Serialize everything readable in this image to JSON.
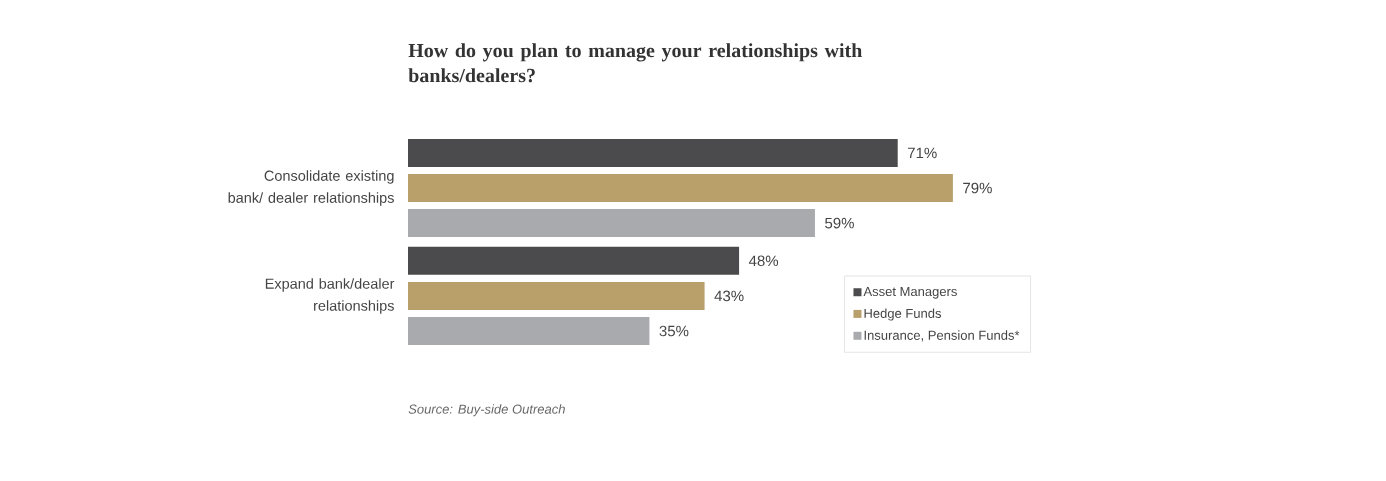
{
  "chart_data": {
    "type": "bar",
    "orientation": "horizontal",
    "title": "How do you plan to manage your relationships with banks/dealers?",
    "categories": [
      "Consolidate existing bank/ dealer relationships",
      "Expand bank/dealer relationships"
    ],
    "series": [
      {
        "name": "Asset Managers",
        "color": "#4b4b4d",
        "values": [
          71,
          48
        ],
        "value_labels": [
          "71%",
          "48%"
        ]
      },
      {
        "name": "Hedge Funds",
        "color": "#b9a06a",
        "values": [
          79,
          43
        ],
        "value_labels": [
          "79%",
          "43%"
        ]
      },
      {
        "name": "Insurance, Pension Funds*",
        "color": "#a8aaad",
        "values": [
          59,
          35
        ],
        "value_labels": [
          "59%",
          "35%"
        ]
      }
    ],
    "legend": "bottom right",
    "annotations": [
      "Source: Buy-side Outreach"
    ]
  }
}
